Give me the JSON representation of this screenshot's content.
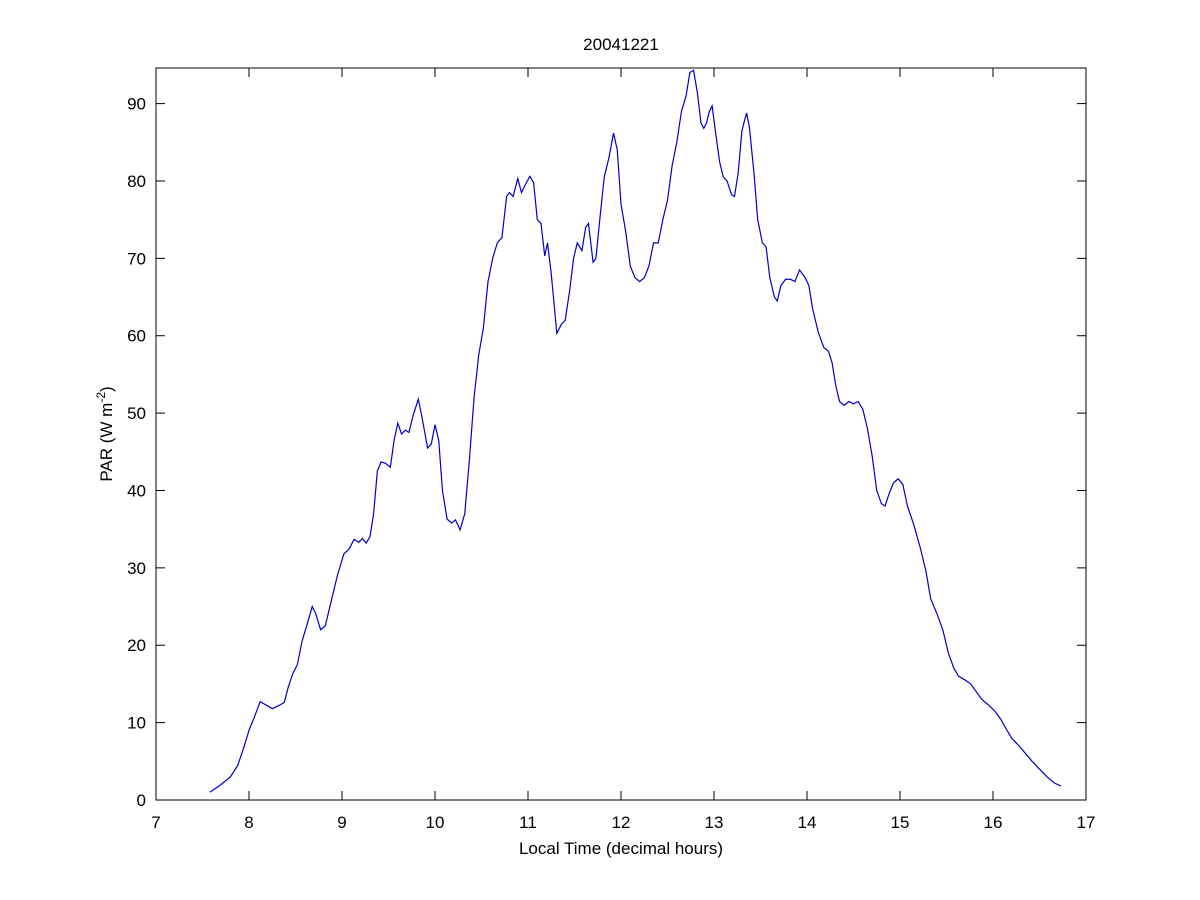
{
  "chart_data": {
    "type": "line",
    "title": "20041221",
    "xlabel": "Local Time (decimal hours)",
    "ylabel": {
      "base": "PAR (W m",
      "sup": "-2",
      "end": ")"
    },
    "color": "#0000c8",
    "xlim": [
      7,
      17
    ],
    "xticks": [
      7,
      8,
      9,
      10,
      11,
      12,
      13,
      14,
      15,
      16,
      17
    ],
    "ylim": [
      0,
      94.6
    ],
    "yticks": [
      0,
      10,
      20,
      30,
      40,
      50,
      60,
      70,
      80,
      90
    ],
    "x": [
      7.58,
      7.7,
      7.8,
      7.88,
      7.95,
      8.0,
      8.06,
      8.12,
      8.18,
      8.25,
      8.32,
      8.38,
      8.42,
      8.47,
      8.52,
      8.57,
      8.62,
      8.68,
      8.72,
      8.77,
      8.82,
      8.88,
      8.95,
      9.02,
      9.08,
      9.13,
      9.18,
      9.22,
      9.26,
      9.3,
      9.34,
      9.38,
      9.42,
      9.47,
      9.52,
      9.56,
      9.6,
      9.64,
      9.68,
      9.72,
      9.76,
      9.82,
      9.86,
      9.92,
      9.96,
      10.0,
      10.04,
      10.08,
      10.13,
      10.18,
      10.22,
      10.27,
      10.32,
      10.37,
      10.42,
      10.47,
      10.52,
      10.57,
      10.62,
      10.67,
      10.72,
      10.77,
      10.8,
      10.84,
      10.89,
      10.93,
      10.97,
      11.02,
      11.06,
      11.1,
      11.14,
      11.18,
      11.21,
      11.25,
      11.31,
      11.36,
      11.4,
      11.45,
      11.49,
      11.53,
      11.58,
      11.62,
      11.65,
      11.7,
      11.73,
      11.78,
      11.82,
      11.87,
      11.92,
      11.96,
      12.0,
      12.05,
      12.1,
      12.15,
      12.2,
      12.25,
      12.3,
      12.35,
      12.4,
      12.45,
      12.5,
      12.55,
      12.6,
      12.65,
      12.7,
      12.74,
      12.78,
      12.82,
      12.86,
      12.89,
      12.92,
      12.95,
      12.98,
      13.02,
      13.06,
      13.1,
      13.14,
      13.19,
      13.22,
      13.26,
      13.3,
      13.35,
      13.38,
      13.43,
      13.47,
      13.52,
      13.56,
      13.6,
      13.65,
      13.68,
      13.72,
      13.77,
      13.82,
      13.87,
      13.92,
      13.98,
      14.02,
      14.06,
      14.12,
      14.18,
      14.23,
      14.27,
      14.31,
      14.35,
      14.4,
      14.45,
      14.5,
      14.55,
      14.6,
      14.65,
      14.7,
      14.75,
      14.8,
      14.84,
      14.88,
      14.93,
      14.98,
      15.03,
      15.08,
      15.15,
      15.22,
      15.28,
      15.33,
      15.4,
      15.46,
      15.52,
      15.58,
      15.63,
      15.7,
      15.76,
      15.82,
      15.88,
      15.95,
      16.02,
      16.08,
      16.15,
      16.2,
      16.28,
      16.35,
      16.42,
      16.5,
      16.58,
      16.66,
      16.73
    ],
    "values": [
      1.0,
      2.0,
      3.0,
      4.5,
      7.0,
      9.0,
      10.8,
      12.7,
      12.3,
      11.8,
      12.2,
      12.6,
      14.5,
      16.3,
      17.5,
      20.5,
      22.5,
      25.0,
      24.0,
      22.0,
      22.5,
      25.5,
      29.0,
      31.8,
      32.5,
      33.7,
      33.3,
      33.8,
      33.2,
      34.0,
      37.0,
      42.5,
      43.7,
      43.5,
      43.0,
      46.5,
      48.7,
      47.3,
      47.8,
      47.5,
      49.5,
      51.8,
      49.5,
      45.5,
      46.0,
      48.5,
      46.5,
      40.0,
      36.3,
      35.8,
      36.2,
      34.9,
      37.0,
      44.0,
      52.0,
      57.5,
      61.0,
      67.0,
      70.0,
      72.0,
      72.7,
      78.0,
      78.5,
      78.0,
      80.3,
      78.5,
      79.5,
      80.6,
      79.8,
      75.0,
      74.5,
      70.3,
      72.0,
      68.0,
      60.3,
      61.5,
      62.0,
      66.0,
      70.0,
      72.0,
      71.0,
      74.0,
      74.5,
      69.5,
      70.0,
      76.0,
      80.5,
      83.0,
      86.2,
      84.0,
      77.0,
      73.5,
      69.0,
      67.5,
      67.0,
      67.5,
      69.0,
      72.0,
      72.0,
      75.0,
      77.5,
      82.0,
      85.0,
      89.0,
      91.0,
      94.0,
      94.3,
      91.5,
      87.5,
      86.8,
      87.5,
      89.0,
      89.7,
      86.0,
      82.5,
      80.5,
      80.0,
      78.2,
      78.0,
      81.0,
      86.5,
      88.8,
      87.0,
      81.0,
      75.0,
      72.0,
      71.5,
      67.5,
      65.0,
      64.5,
      66.5,
      67.3,
      67.3,
      67.0,
      68.5,
      67.5,
      66.5,
      63.5,
      60.5,
      58.5,
      58.0,
      56.5,
      53.5,
      51.5,
      51.0,
      51.5,
      51.2,
      51.5,
      50.5,
      48.0,
      44.5,
      40.0,
      38.3,
      38.0,
      39.5,
      41.0,
      41.5,
      40.8,
      38.0,
      35.5,
      32.5,
      29.5,
      26.0,
      24.0,
      22.0,
      19.0,
      17.0,
      16.0,
      15.5,
      15.0,
      14.0,
      13.0,
      12.3,
      11.5,
      10.5,
      9.0,
      8.0,
      7.0,
      6.0,
      5.0,
      4.0,
      3.0,
      2.2,
      1.8
    ]
  }
}
